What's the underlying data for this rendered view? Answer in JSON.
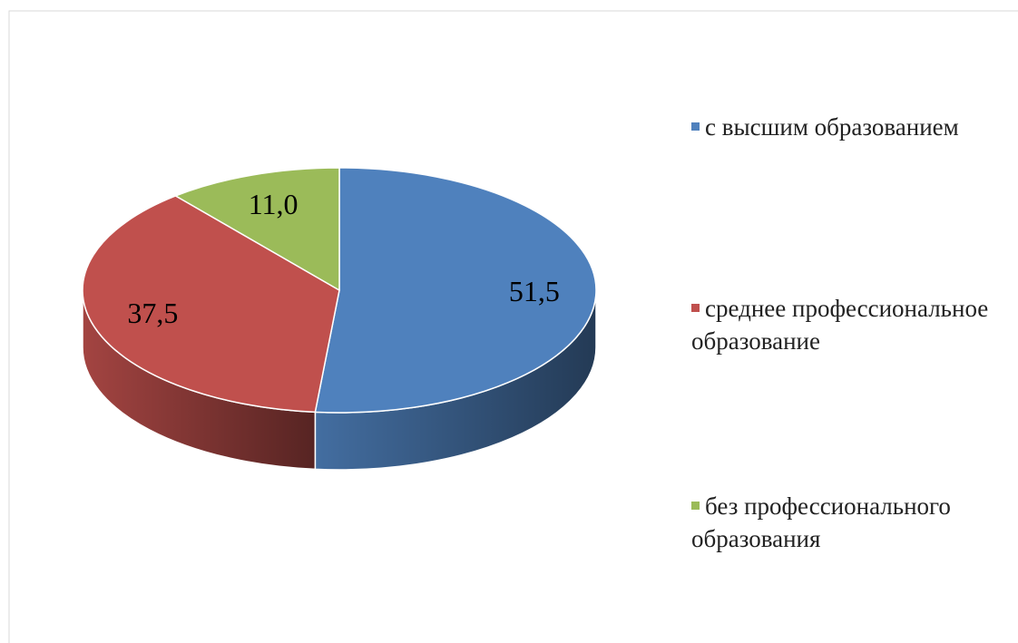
{
  "chart_data": {
    "type": "pie",
    "categories": [
      "с высшим образованием",
      "среднее профессиональное образование",
      "без профессионального образования"
    ],
    "values": [
      51.5,
      37.5,
      11.0
    ],
    "value_labels": [
      "51,5",
      "37,5",
      "11,0"
    ],
    "colors": [
      "#4f81bd",
      "#c0504d",
      "#9bbb59"
    ],
    "legend": "right"
  }
}
